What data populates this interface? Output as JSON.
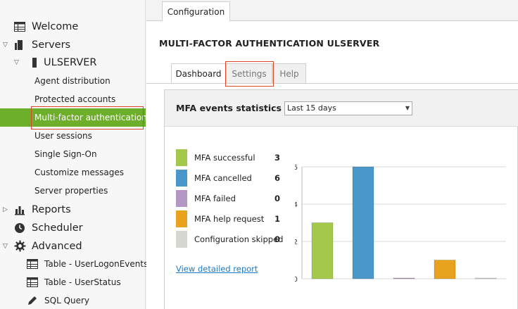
{
  "sidebar": {
    "welcome": "Welcome",
    "servers": "Servers",
    "server_name": "ULSERVER",
    "server_items": [
      "Agent distribution",
      "Protected accounts",
      "Multi-factor authentication",
      "User sessions",
      "Single Sign-On",
      "Customize messages",
      "Server properties"
    ],
    "reports": "Reports",
    "scheduler": "Scheduler",
    "advanced": "Advanced",
    "advanced_items": [
      "Table - UserLogonEvents",
      "Table - UserStatus",
      "SQL Query"
    ]
  },
  "main": {
    "top_tab": "Configuration",
    "page_title": "MULTI-FACTOR AUTHENTICATION ULSERVER",
    "tabs": [
      "Dashboard",
      "Settings",
      "Help"
    ],
    "panel_title": "MFA events statistics",
    "range_value": "Last 15 days",
    "report_link": "View detailed report"
  },
  "colors": {
    "accent": "#6dae2a",
    "highlight": "#d9472b",
    "link": "#1a7ac7"
  },
  "chart_data": {
    "type": "bar",
    "categories": [
      "MFA successful",
      "MFA cancelled",
      "MFA failed",
      "MFA help request",
      "Configuration skipped"
    ],
    "values": [
      3,
      6,
      0,
      1,
      0
    ],
    "colors": [
      "#a4c84a",
      "#4a97c9",
      "#b497c4",
      "#e8a21e",
      "#d6d6d2"
    ],
    "ylim": [
      0,
      6
    ],
    "yticks": [
      0,
      2,
      4,
      6
    ],
    "grid": true
  }
}
